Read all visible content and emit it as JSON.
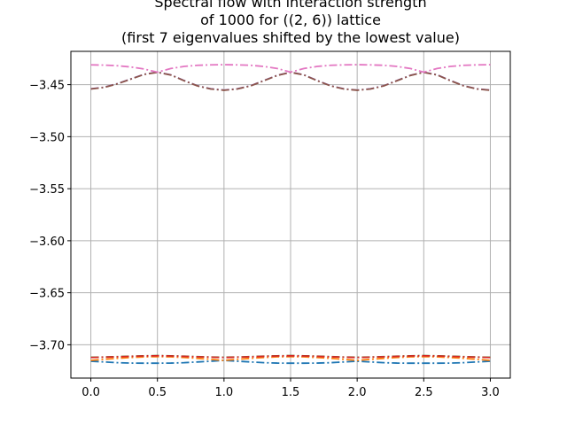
{
  "chart_data": {
    "type": "line",
    "title_lines": [
      "Spectral flow with interaction strength",
      "of 1000 for ((2, 6)) lattice",
      "(first 7 eigenvalues shifted by the lowest value)"
    ],
    "xlabel": "",
    "ylabel": "",
    "xlim": [
      -0.15,
      3.15
    ],
    "ylim": [
      -3.732,
      -3.418
    ],
    "xticks": [
      0.0,
      0.5,
      1.0,
      1.5,
      2.0,
      2.5,
      3.0
    ],
    "xtick_labels": [
      "0.0",
      "0.5",
      "1.0",
      "1.5",
      "2.0",
      "2.5",
      "3.0"
    ],
    "yticks": [
      -3.45,
      -3.5,
      -3.55,
      -3.6,
      -3.65,
      -3.7
    ],
    "ytick_labels": [
      "−3.45",
      "−3.50",
      "−3.55",
      "−3.60",
      "−3.65",
      "−3.70"
    ],
    "grid": true,
    "line_style": "dashdot",
    "x": [
      0.0,
      0.1,
      0.2,
      0.3,
      0.4,
      0.5,
      0.6,
      0.7,
      0.8,
      0.9,
      1.0,
      1.1,
      1.2,
      1.3,
      1.4,
      1.5,
      1.6,
      1.7,
      1.8,
      1.9,
      2.0,
      2.1,
      2.2,
      2.3,
      2.4,
      2.5,
      2.6,
      2.7,
      2.8,
      2.9,
      3.0
    ],
    "series": [
      {
        "color": "#1f77b4",
        "values": [
          -3.7158,
          -3.7165,
          -3.7172,
          -3.7176,
          -3.7177,
          -3.7177,
          -3.7176,
          -3.7172,
          -3.7165,
          -3.7158,
          -3.715,
          -3.7158,
          -3.7165,
          -3.7172,
          -3.7176,
          -3.7177,
          -3.7177,
          -3.7176,
          -3.7172,
          -3.7165,
          -3.7158,
          -3.7165,
          -3.7172,
          -3.7176,
          -3.7177,
          -3.7177,
          -3.7177,
          -3.7176,
          -3.7172,
          -3.7165,
          -3.7158
        ]
      },
      {
        "color": "#ff7f0e",
        "values": [
          -3.715,
          -3.714,
          -3.713,
          -3.7122,
          -3.7116,
          -3.7114,
          -3.7116,
          -3.7122,
          -3.713,
          -3.714,
          -3.715,
          -3.714,
          -3.713,
          -3.7122,
          -3.7116,
          -3.7114,
          -3.7116,
          -3.7122,
          -3.713,
          -3.714,
          -3.715,
          -3.714,
          -3.713,
          -3.7122,
          -3.7116,
          -3.7114,
          -3.7116,
          -3.7122,
          -3.713,
          -3.714,
          -3.715
        ]
      },
      {
        "color": "#2ca02c",
        "values": [
          -3.712,
          -3.7118,
          -3.7114,
          -3.711,
          -3.7106,
          -3.7104,
          -3.7106,
          -3.711,
          -3.7114,
          -3.7118,
          -3.712,
          -3.7118,
          -3.7114,
          -3.711,
          -3.7106,
          -3.7104,
          -3.7106,
          -3.711,
          -3.7114,
          -3.7118,
          -3.712,
          -3.7118,
          -3.7114,
          -3.711,
          -3.7106,
          -3.7104,
          -3.7106,
          -3.711,
          -3.7114,
          -3.7118,
          -3.712
        ]
      },
      {
        "color": "#d62728",
        "values": [
          -3.7122,
          -3.7119,
          -3.7115,
          -3.7111,
          -3.7107,
          -3.7105,
          -3.7107,
          -3.7111,
          -3.7115,
          -3.7119,
          -3.7122,
          -3.7119,
          -3.7115,
          -3.7111,
          -3.7107,
          -3.7105,
          -3.7107,
          -3.7111,
          -3.7115,
          -3.7119,
          -3.7122,
          -3.7119,
          -3.7115,
          -3.7111,
          -3.7107,
          -3.7105,
          -3.7107,
          -3.7111,
          -3.7115,
          -3.7119,
          -3.7122
        ]
      },
      {
        "color": "#9467bd",
        "values": [
          -3.454,
          -3.4525,
          -3.449,
          -3.4445,
          -3.44,
          -3.438,
          -3.4405,
          -3.446,
          -3.451,
          -3.454,
          -3.4552,
          -3.454,
          -3.451,
          -3.446,
          -3.441,
          -3.438,
          -3.4405,
          -3.446,
          -3.451,
          -3.454,
          -3.4552,
          -3.454,
          -3.451,
          -3.446,
          -3.441,
          -3.438,
          -3.4405,
          -3.446,
          -3.451,
          -3.454,
          -3.4552
        ]
      },
      {
        "color": "#8c564b",
        "values": [
          -3.4542,
          -3.4527,
          -3.4492,
          -3.4447,
          -3.4402,
          -3.4382,
          -3.4407,
          -3.4462,
          -3.4512,
          -3.4542,
          -3.4554,
          -3.4542,
          -3.4512,
          -3.4462,
          -3.4412,
          -3.4382,
          -3.4407,
          -3.4462,
          -3.4512,
          -3.4542,
          -3.4554,
          -3.4542,
          -3.4512,
          -3.4462,
          -3.4412,
          -3.4382,
          -3.4407,
          -3.4462,
          -3.4512,
          -3.4542,
          -3.4554
        ]
      },
      {
        "color": "#e377c2",
        "values": [
          -3.431,
          -3.4312,
          -3.4318,
          -3.433,
          -3.435,
          -3.438,
          -3.4345,
          -3.4325,
          -3.4314,
          -3.431,
          -3.4308,
          -3.431,
          -3.4314,
          -3.4325,
          -3.4345,
          -3.438,
          -3.4345,
          -3.4325,
          -3.4314,
          -3.431,
          -3.4308,
          -3.431,
          -3.4314,
          -3.4325,
          -3.4345,
          -3.438,
          -3.4345,
          -3.4325,
          -3.4314,
          -3.431,
          -3.4308
        ]
      }
    ]
  }
}
